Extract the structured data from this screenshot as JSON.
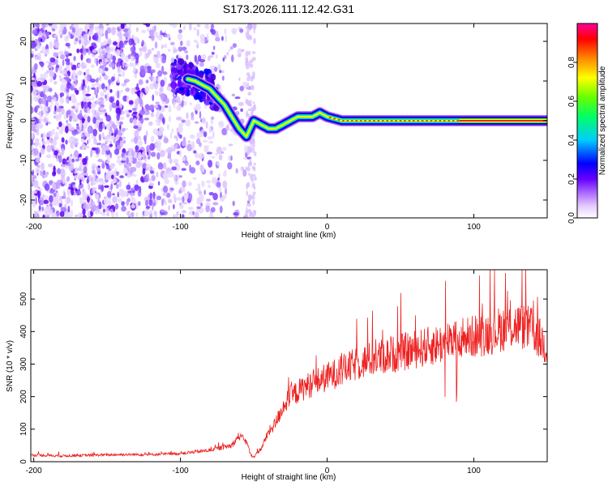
{
  "title": "S173.2026.111.12.42.G31",
  "chart_data": [
    {
      "type": "heatmap",
      "xlabel": "Height of straight line (km)",
      "ylabel": "Frequency (Hz)",
      "xlim": [
        -202,
        150
      ],
      "ylim": [
        -24.5,
        24.5
      ],
      "xticks": [
        -200,
        -100,
        0,
        100
      ],
      "xtick_labels": [
        "-200",
        "-100",
        "0",
        "100"
      ],
      "yticks": [
        -20,
        -10,
        0,
        10,
        20
      ],
      "ytick_labels": [
        "-20",
        "-10",
        "0",
        "10",
        "20"
      ],
      "ridge": {
        "description": "Dominant frequency ridge versus height",
        "x": [
          -100,
          -90,
          -80,
          -75,
          -70,
          -65,
          -60,
          -55,
          -50,
          -45,
          -40,
          -35,
          -30,
          -25,
          -20,
          -15,
          -10,
          -5,
          0,
          5,
          10,
          20,
          40,
          60,
          80,
          90,
          150
        ],
        "y": [
          11,
          10,
          8,
          6,
          4,
          1,
          -2,
          -4,
          0,
          -1,
          -2,
          -2,
          -1,
          0,
          1,
          1,
          1,
          2,
          1,
          0.5,
          0,
          0,
          0,
          0,
          0,
          0,
          0
        ]
      },
      "colorbar": {
        "label": "Normalized spectral amplitude",
        "range": [
          0,
          1
        ],
        "ticks": [
          0.0,
          0.2,
          0.4,
          0.6,
          0.8
        ],
        "tick_labels": [
          "0.0",
          "0.2",
          "0.4",
          "0.6",
          "0.8"
        ],
        "colors": [
          "#ffffff",
          "#c8a0ff",
          "#6600ff",
          "#0000ff",
          "#00ffff",
          "#00ff00",
          "#ffff00",
          "#ff6600",
          "#ff0000",
          "#ff00aa"
        ]
      }
    },
    {
      "type": "line",
      "xlabel": "Height of straight line (km)",
      "ylabel": "SNR (10 * v/v)",
      "xlim": [
        -202,
        150
      ],
      "ylim": [
        0,
        590
      ],
      "xticks": [
        -200,
        -100,
        0,
        100
      ],
      "xtick_labels": [
        "-200",
        "-100",
        "0",
        "100"
      ],
      "yticks": [
        0,
        100,
        200,
        300,
        400,
        500
      ],
      "ytick_labels": [
        "0",
        "100",
        "200",
        "300",
        "400",
        "500"
      ],
      "series": [
        {
          "name": "SNR",
          "color": "#ee2222",
          "x": [
            -200,
            -180,
            -160,
            -140,
            -120,
            -100,
            -90,
            -80,
            -70,
            -65,
            -60,
            -55,
            -52,
            -50,
            -45,
            -40,
            -35,
            -30,
            -25,
            -20,
            -15,
            -10,
            -5,
            0,
            10,
            20,
            30,
            40,
            50,
            60,
            70,
            80,
            90,
            100,
            110,
            120,
            130,
            140,
            150
          ],
          "y": [
            20,
            18,
            20,
            22,
            22,
            25,
            30,
            35,
            45,
            50,
            80,
            60,
            20,
            15,
            40,
            90,
            120,
            170,
            200,
            215,
            230,
            240,
            250,
            260,
            280,
            300,
            315,
            325,
            335,
            345,
            355,
            365,
            375,
            385,
            395,
            410,
            420,
            405,
            350
          ]
        }
      ]
    }
  ]
}
